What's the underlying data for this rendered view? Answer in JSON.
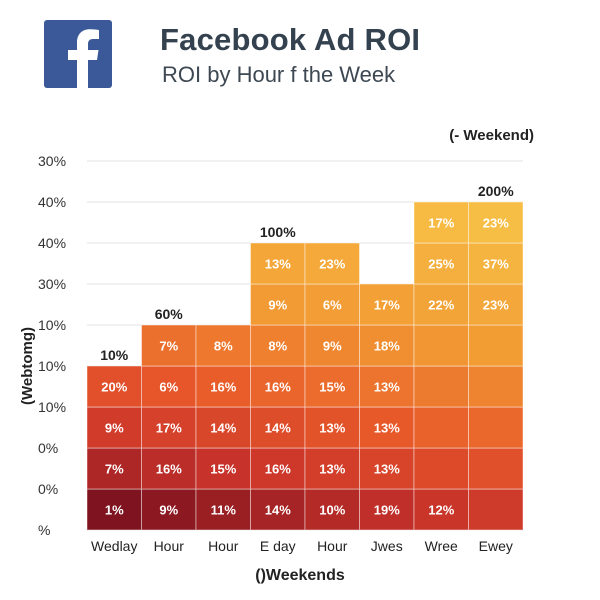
{
  "header": {
    "logo_letter": "f",
    "title": "Facebook Ad ROI",
    "subtitle": "ROI by Hour f the Week"
  },
  "legend_label": "(- Weekend)",
  "colors": {
    "brand": "#3b5998",
    "heat_low": "#f6b83d",
    "heat_high": "#7f1420",
    "title": "#34424f"
  },
  "chart_data": {
    "type": "heatmap",
    "title": "ROI by Hour f the Week",
    "xlabel": "()Weekends",
    "ylabel": "(Webtomg)",
    "y_tick_labels": [
      "30%",
      "40%",
      "40%",
      "30%",
      "10%",
      "10%",
      "10%",
      "0%",
      "0%",
      "%"
    ],
    "categories": [
      "Wedlay",
      "Hour",
      "Hour",
      "E day",
      "Hour",
      "Jwes",
      "Wree",
      "Ewey"
    ],
    "column_heights": [
      4,
      5,
      5,
      7,
      7,
      6,
      8,
      8
    ],
    "top_labels": [
      "10%",
      "60%",
      "",
      "100%",
      "",
      "",
      "",
      "200%"
    ],
    "columns": [
      [
        "1%",
        "7%",
        "9%",
        "20%"
      ],
      [
        "9%",
        "16%",
        "17%",
        "6%",
        "7%"
      ],
      [
        "11%",
        "15%",
        "14%",
        "16%",
        "8%"
      ],
      [
        "14%",
        "16%",
        "14%",
        "16%",
        "8%",
        "9%",
        "13%"
      ],
      [
        "10%",
        "13%",
        "13%",
        "15%",
        "9%",
        "6%",
        "23%"
      ],
      [
        "19%",
        "13%",
        "13%",
        "13%",
        "18%",
        "17%"
      ],
      [
        "12%",
        "",
        "",
        "",
        "",
        "22%",
        "25%",
        "17%"
      ],
      [
        "",
        "",
        "",
        "",
        "",
        "23%",
        "37%",
        "23%"
      ]
    ],
    "legend": "(- Weekend)"
  }
}
